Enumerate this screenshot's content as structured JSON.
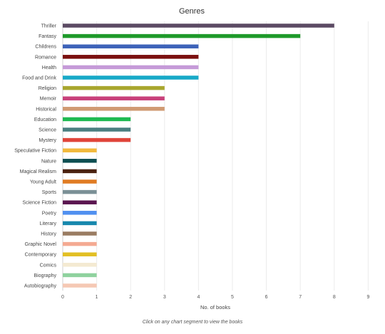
{
  "chart_data": {
    "type": "bar",
    "orientation": "horizontal",
    "title": "Genres",
    "xlabel": "No. of books",
    "ylabel": "",
    "xlim": [
      0,
      9
    ],
    "xticks": [
      0,
      1,
      2,
      3,
      4,
      5,
      6,
      7,
      8,
      9
    ],
    "grid": true,
    "categories": [
      "Thriller",
      "Fantasy",
      "Childrens",
      "Romance",
      "Health",
      "Food and Drink",
      "Religion",
      "Memoir",
      "Historical",
      "Education",
      "Science",
      "Mystery",
      "Speculative Fiction",
      "Nature",
      "Magical Realism",
      "Young Adult",
      "Sports",
      "Science Fiction",
      "Poetry",
      "Literary",
      "History",
      "Graphic Novel",
      "Contemporary",
      "Comics",
      "Biography",
      "Autobiography"
    ],
    "values": [
      8,
      7,
      4,
      4,
      4,
      4,
      3,
      3,
      3,
      2,
      2,
      2,
      1,
      1,
      1,
      1,
      1,
      1,
      1,
      1,
      1,
      1,
      1,
      1,
      1,
      1
    ],
    "colors": [
      "#5b4a63",
      "#1f9a2b",
      "#3d62b8",
      "#7a0f0f",
      "#c59ad8",
      "#17a9c7",
      "#a8a62e",
      "#c8407a",
      "#d09a72",
      "#1fba52",
      "#4a7f80",
      "#e0453a",
      "#f2b93c",
      "#0d4e51",
      "#4a2210",
      "#e07b22",
      "#7b9096",
      "#5a1550",
      "#5090f0",
      "#1788ad",
      "#9a7c62",
      "#f4aa92",
      "#e2bf24",
      "#f4ead2",
      "#8fd29e",
      "#f5c8b4"
    ]
  },
  "footer": {
    "note": "Click on any chart segment to view the books"
  }
}
